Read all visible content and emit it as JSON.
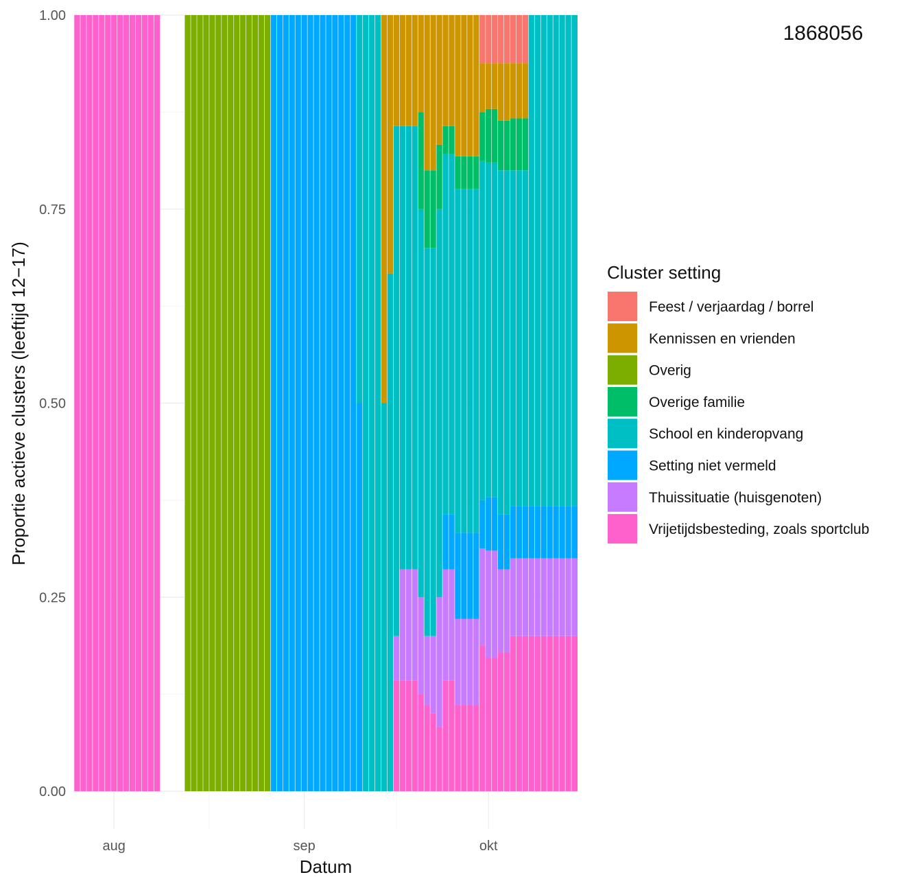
{
  "annotation": "1868056",
  "chart_data": {
    "type": "bar",
    "stacked": true,
    "normalized": true,
    "xlabel": "Datum",
    "ylabel": "Proportie actieve clusters (leeftijd 12−17)",
    "ylim": [
      0,
      1
    ],
    "y_ticks": [
      "0.00",
      "0.25",
      "0.50",
      "0.75",
      "1.00"
    ],
    "x_ticks": [
      {
        "label": "aug",
        "day": 1
      },
      {
        "label": "sep",
        "day": 32
      },
      {
        "label": "okt",
        "day": 62
      }
    ],
    "x_range_days": [
      -5.5,
      76.5
    ],
    "grid": true,
    "legend": {
      "title": "Cluster setting",
      "position": "right",
      "entries": [
        {
          "label": "Feest / verjaardag / borrel",
          "color": "#F8766D"
        },
        {
          "label": "Kennissen en vrienden",
          "color": "#CD9600"
        },
        {
          "label": "Overig",
          "color": "#7CAE00"
        },
        {
          "label": "Overige familie",
          "color": "#00BE67"
        },
        {
          "label": "School en kinderopvang",
          "color": "#00BFC4"
        },
        {
          "label": "Setting niet vermeld",
          "color": "#00A9FF"
        },
        {
          "label": "Thuissituatie (huisgenoten)",
          "color": "#C77CFF"
        },
        {
          "label": "Vrijetijdsbesteding, zoals sportclub",
          "color": "#FF61CC"
        }
      ]
    },
    "series_order": [
      "Vrijetijdsbesteding, zoals sportclub",
      "Thuissituatie (huisgenoten)",
      "Setting niet vermeld",
      "School en kinderopvang",
      "Overige familie",
      "Overig",
      "Kennissen en vrienden",
      "Feest / verjaardag / borrel"
    ],
    "start_day": -5,
    "bars": [
      [
        1,
        0,
        0,
        0,
        0,
        0,
        0,
        0
      ],
      [
        1,
        0,
        0,
        0,
        0,
        0,
        0,
        0
      ],
      [
        1,
        0,
        0,
        0,
        0,
        0,
        0,
        0
      ],
      [
        1,
        0,
        0,
        0,
        0,
        0,
        0,
        0
      ],
      [
        1,
        0,
        0,
        0,
        0,
        0,
        0,
        0
      ],
      [
        1,
        0,
        0,
        0,
        0,
        0,
        0,
        0
      ],
      [
        1,
        0,
        0,
        0,
        0,
        0,
        0,
        0
      ],
      [
        1,
        0,
        0,
        0,
        0,
        0,
        0,
        0
      ],
      [
        1,
        0,
        0,
        0,
        0,
        0,
        0,
        0
      ],
      [
        1,
        0,
        0,
        0,
        0,
        0,
        0,
        0
      ],
      [
        1,
        0,
        0,
        0,
        0,
        0,
        0,
        0
      ],
      [
        1,
        0,
        0,
        0,
        0,
        0,
        0,
        0
      ],
      [
        1,
        0,
        0,
        0,
        0,
        0,
        0,
        0
      ],
      [
        1,
        0,
        0,
        0,
        0,
        0,
        0,
        0
      ],
      [
        0,
        0,
        0,
        0,
        0,
        0,
        0,
        0
      ],
      [
        0,
        0,
        0,
        0,
        0,
        0,
        0,
        0
      ],
      [
        0,
        0,
        0,
        0,
        0,
        0,
        0,
        0
      ],
      [
        0,
        0,
        0,
        0,
        0,
        0,
        0,
        0
      ],
      [
        0,
        0,
        0,
        0,
        0,
        1,
        0,
        0
      ],
      [
        0,
        0,
        0,
        0,
        0,
        1,
        0,
        0
      ],
      [
        0,
        0,
        0,
        0,
        0,
        1,
        0,
        0
      ],
      [
        0,
        0,
        0,
        0,
        0,
        1,
        0,
        0
      ],
      [
        0,
        0,
        0,
        0,
        0,
        1,
        0,
        0
      ],
      [
        0,
        0,
        0,
        0,
        0,
        1,
        0,
        0
      ],
      [
        0,
        0,
        0,
        0,
        0,
        1,
        0,
        0
      ],
      [
        0,
        0,
        0,
        0,
        0,
        1,
        0,
        0
      ],
      [
        0,
        0,
        0,
        0,
        0,
        1,
        0,
        0
      ],
      [
        0,
        0,
        0,
        0,
        0,
        1,
        0,
        0
      ],
      [
        0,
        0,
        0,
        0,
        0,
        1,
        0,
        0
      ],
      [
        0,
        0,
        0,
        0,
        0,
        1,
        0,
        0
      ],
      [
        0,
        0,
        0,
        0,
        0,
        1,
        0,
        0
      ],
      [
        0,
        0,
        0,
        0,
        0,
        1,
        0,
        0
      ],
      [
        0,
        0,
        1,
        0,
        0,
        0,
        0,
        0
      ],
      [
        0,
        0,
        1,
        0,
        0,
        0,
        0,
        0
      ],
      [
        0,
        0,
        1,
        0,
        0,
        0,
        0,
        0
      ],
      [
        0,
        0,
        1,
        0,
        0,
        0,
        0,
        0
      ],
      [
        0,
        0,
        1,
        0,
        0,
        0,
        0,
        0
      ],
      [
        0,
        0,
        1,
        0,
        0,
        0,
        0,
        0
      ],
      [
        0,
        0,
        1,
        0,
        0,
        0,
        0,
        0
      ],
      [
        0,
        0,
        1,
        0,
        0,
        0,
        0,
        0
      ],
      [
        0,
        0,
        1,
        0,
        0,
        0,
        0,
        0
      ],
      [
        0,
        0,
        1,
        0,
        0,
        0,
        0,
        0
      ],
      [
        0,
        0,
        1,
        0,
        0,
        0,
        0,
        0
      ],
      [
        0,
        0,
        1,
        0,
        0,
        0,
        0,
        0
      ],
      [
        0,
        0,
        1,
        0,
        0,
        0,
        0,
        0
      ],
      [
        0,
        0,
        1,
        0,
        0,
        0,
        0,
        0
      ],
      [
        0,
        0,
        0.5,
        0.5,
        0,
        0,
        0,
        0
      ],
      [
        0,
        0,
        0,
        1,
        0,
        0,
        0,
        0
      ],
      [
        0,
        0,
        0,
        1,
        0,
        0,
        0,
        0
      ],
      [
        0,
        0,
        0,
        1,
        0,
        0,
        0,
        0
      ],
      [
        0,
        0,
        0,
        0.5,
        0,
        0,
        0.5,
        0
      ],
      [
        0,
        0,
        0,
        0.667,
        0,
        0,
        0.333,
        0
      ],
      [
        0.143,
        0.057,
        0,
        0.657,
        0,
        0,
        0.143,
        0
      ],
      [
        0.143,
        0.143,
        0,
        0.571,
        0,
        0,
        0.143,
        0
      ],
      [
        0.143,
        0.143,
        0,
        0.571,
        0,
        0,
        0.143,
        0
      ],
      [
        0.143,
        0.143,
        0,
        0.571,
        0,
        0,
        0.143,
        0
      ],
      [
        0.125,
        0.125,
        0,
        0.5,
        0.125,
        0,
        0.125,
        0
      ],
      [
        0.111,
        0.089,
        0,
        0.5,
        0.1,
        0,
        0.2,
        0
      ],
      [
        0.1,
        0.1,
        0,
        0.5,
        0.1,
        0,
        0.2,
        0
      ],
      [
        0.083,
        0.167,
        0,
        0.5,
        0.083,
        0,
        0.167,
        0
      ],
      [
        0.143,
        0.143,
        0.071,
        0.464,
        0.036,
        0,
        0.143,
        0
      ],
      [
        0.143,
        0.143,
        0.071,
        0.464,
        0.036,
        0,
        0.143,
        0
      ],
      [
        0.111,
        0.111,
        0.111,
        0.443,
        0.042,
        0,
        0.182,
        0
      ],
      [
        0.111,
        0.111,
        0.111,
        0.443,
        0.042,
        0,
        0.182,
        0
      ],
      [
        0.111,
        0.111,
        0.111,
        0.443,
        0.042,
        0,
        0.182,
        0
      ],
      [
        0.111,
        0.111,
        0.111,
        0.443,
        0.042,
        0,
        0.182,
        0
      ],
      [
        0.188,
        0.125,
        0.062,
        0.437,
        0.063,
        0,
        0.063,
        0.062
      ],
      [
        0.172,
        0.138,
        0.069,
        0.431,
        0.069,
        0,
        0.059,
        0.062
      ],
      [
        0.172,
        0.138,
        0.069,
        0.431,
        0.069,
        0,
        0.059,
        0.062
      ],
      [
        0.179,
        0.107,
        0.071,
        0.443,
        0.064,
        0,
        0.074,
        0.062
      ],
      [
        0.179,
        0.107,
        0.071,
        0.443,
        0.064,
        0,
        0.074,
        0.062
      ],
      [
        0.2,
        0.1,
        0.067,
        0.433,
        0.067,
        0,
        0.071,
        0.062
      ],
      [
        0.2,
        0.1,
        0.067,
        0.433,
        0.067,
        0,
        0.071,
        0.062
      ],
      [
        0.2,
        0.1,
        0.067,
        0.433,
        0.067,
        0,
        0.071,
        0.062
      ],
      [
        0.2,
        0.1,
        0.067,
        0.633,
        0,
        0,
        0,
        0
      ],
      [
        0.2,
        0.1,
        0.067,
        0.633,
        0,
        0,
        0,
        0
      ],
      [
        0.2,
        0.1,
        0.067,
        0.633,
        0,
        0,
        0,
        0
      ],
      [
        0.2,
        0.1,
        0.067,
        0.633,
        0,
        0,
        0,
        0
      ],
      [
        0.2,
        0.1,
        0.067,
        0.633,
        0,
        0,
        0,
        0
      ],
      [
        0.2,
        0.1,
        0.067,
        0.633,
        0,
        0,
        0,
        0
      ],
      [
        0.2,
        0.1,
        0.067,
        0.633,
        0,
        0,
        0,
        0
      ],
      [
        0.2,
        0.1,
        0.067,
        0.633,
        0,
        0,
        0,
        0
      ]
    ],
    "bars_note": "One bar per day from start_day; each row holds proportions in series_order."
  }
}
